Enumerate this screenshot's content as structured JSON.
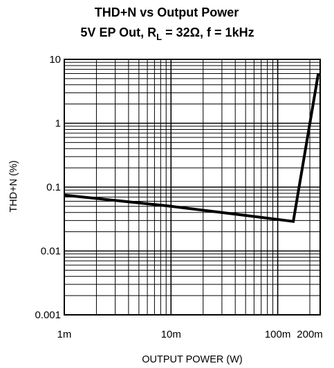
{
  "chart_data": {
    "type": "line",
    "title": "THD+N vs Output Power",
    "subtitle_main": "5V EP Out, R",
    "subtitle_sub": "L",
    "subtitle_rest": " = 32Ω, f = 1kHz",
    "xlabel": "OUTPUT POWER (W)",
    "ylabel": "THD+N (%)",
    "x_scale": "log",
    "y_scale": "log",
    "xlim": [
      0.001,
      0.25
    ],
    "ylim": [
      0.001,
      10
    ],
    "grid": true,
    "x_ticks": [
      {
        "value": 0.001,
        "label": "1m"
      },
      {
        "value": 0.01,
        "label": "10m"
      },
      {
        "value": 0.1,
        "label": "100m"
      },
      {
        "value": 0.2,
        "label": "200m"
      }
    ],
    "y_ticks": [
      {
        "value": 0.001,
        "label": "0.001"
      },
      {
        "value": 0.01,
        "label": "0.01"
      },
      {
        "value": 0.1,
        "label": "0.1"
      },
      {
        "value": 1,
        "label": "1"
      },
      {
        "value": 10,
        "label": "10"
      }
    ],
    "series": [
      {
        "x": [
          0.001,
          0.01,
          0.05,
          0.14,
          0.24
        ],
        "y": [
          0.075,
          0.05,
          0.036,
          0.029,
          6.0
        ]
      }
    ]
  }
}
